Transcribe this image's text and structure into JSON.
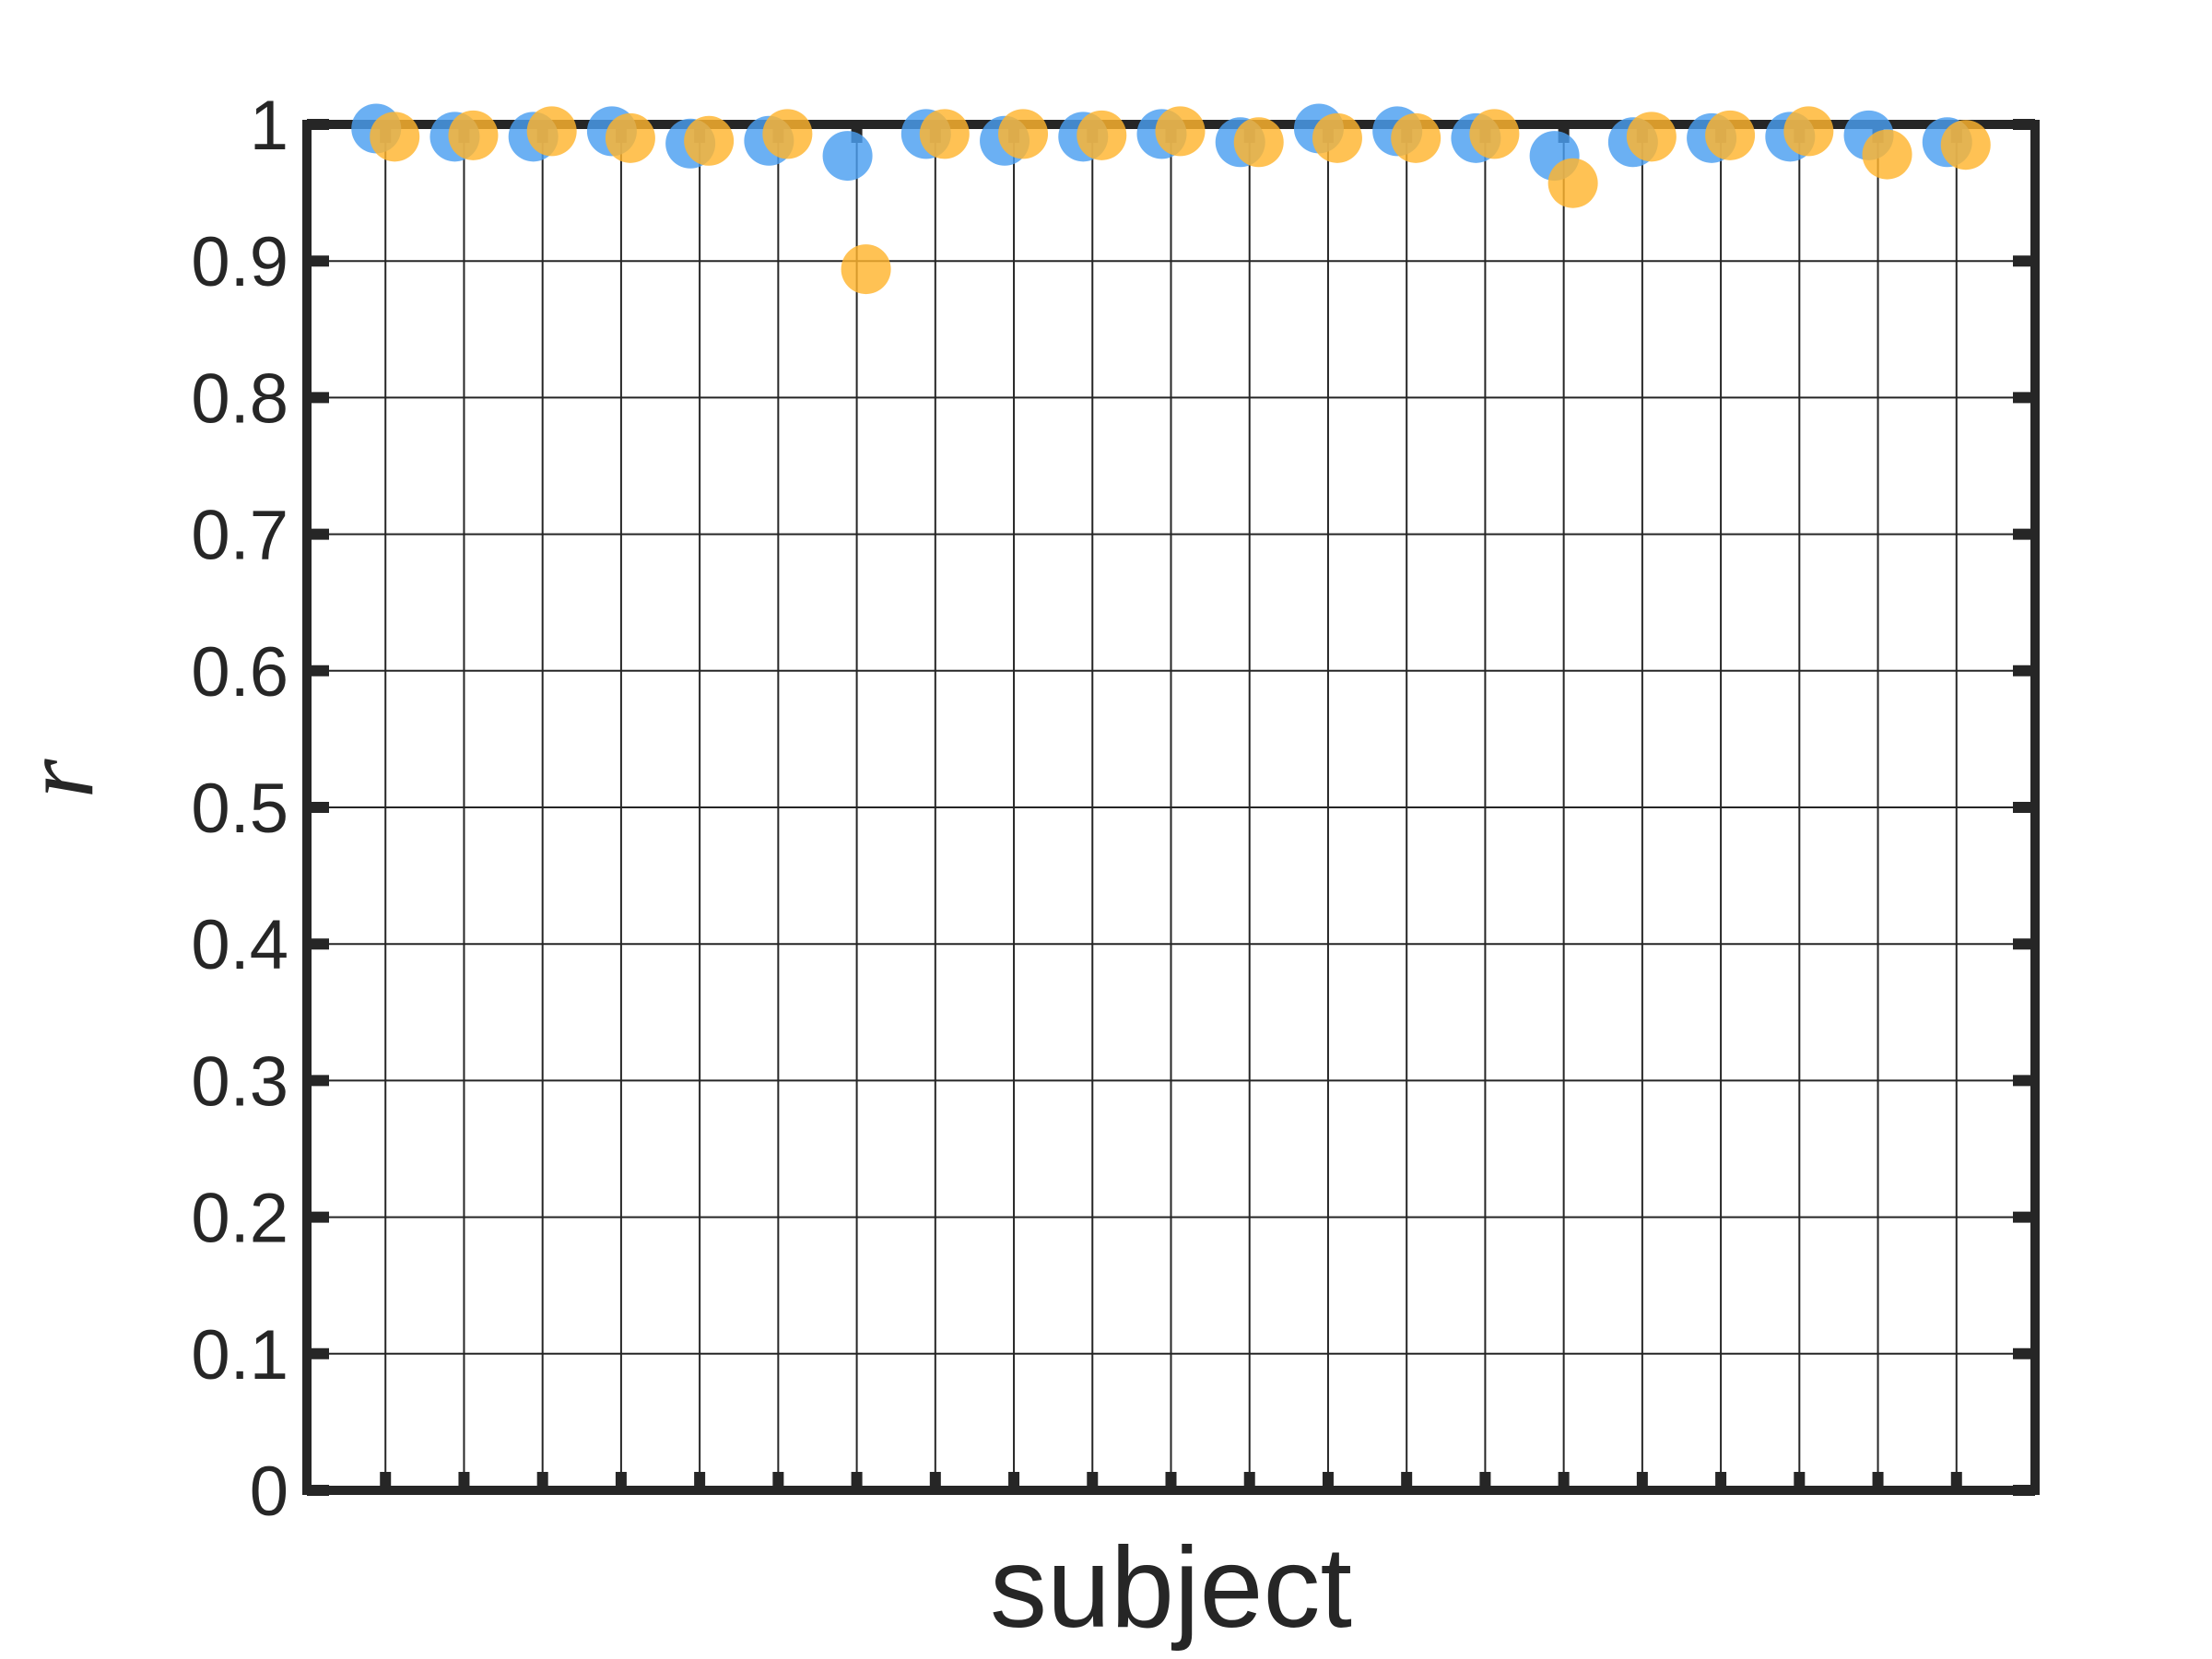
{
  "chart_data": {
    "type": "scatter",
    "title": "",
    "xlabel": "subject",
    "ylabel": "r",
    "ylim": [
      0,
      1
    ],
    "xlim": [
      0,
      22
    ],
    "grid": true,
    "yticks": [
      "0",
      "0.1",
      "0.2",
      "0.3",
      "0.4",
      "0.5",
      "0.6",
      "0.7",
      "0.8",
      "0.9",
      "1"
    ],
    "x": [
      1,
      2,
      3,
      4,
      5,
      6,
      7,
      8,
      9,
      10,
      11,
      12,
      13,
      14,
      15,
      16,
      17,
      18,
      19,
      20,
      21
    ],
    "series": [
      {
        "color": "#4a9ff0",
        "values": [
          0.997,
          0.991,
          0.991,
          0.995,
          0.986,
          0.988,
          0.977,
          0.993,
          0.988,
          0.991,
          0.993,
          0.987,
          0.997,
          0.995,
          0.99,
          0.977,
          0.987,
          0.99,
          0.991,
          0.992,
          0.987
        ]
      },
      {
        "color": "#ffb52e",
        "values": [
          0.991,
          0.992,
          0.995,
          0.99,
          0.988,
          0.993,
          0.894,
          0.993,
          0.993,
          0.992,
          0.995,
          0.987,
          0.99,
          0.99,
          0.993,
          0.957,
          0.991,
          0.992,
          0.995,
          0.978,
          0.985
        ]
      }
    ]
  }
}
